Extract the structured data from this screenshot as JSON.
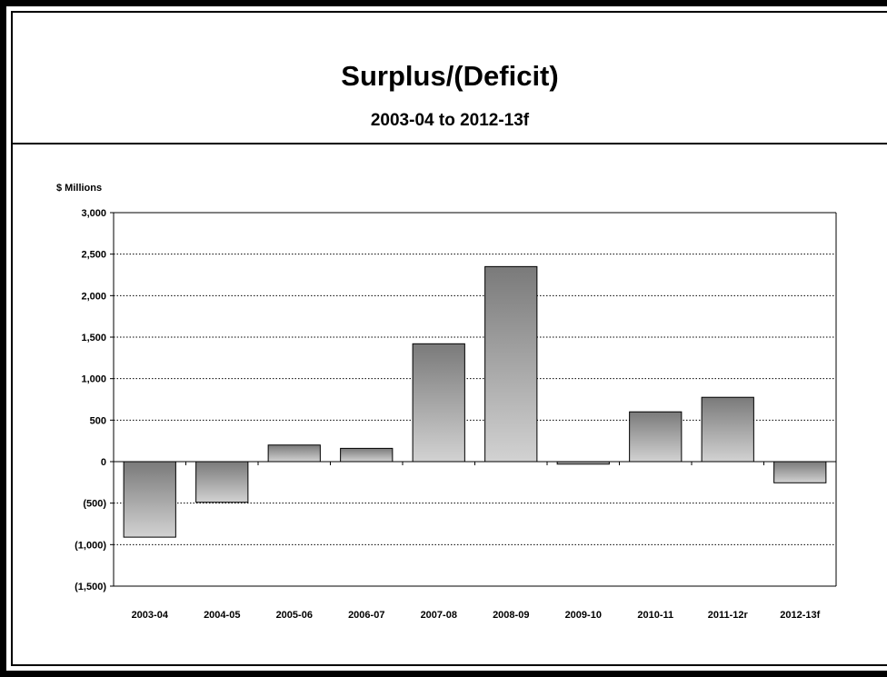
{
  "chart_data": {
    "type": "bar",
    "title": "Surplus/(Deficit)",
    "subtitle": "2003-04 to 2012-13f",
    "ylabel": "$ Millions",
    "xlabel": "",
    "categories": [
      "2003-04",
      "2004-05",
      "2005-06",
      "2006-07",
      "2007-08",
      "2008-09",
      "2009-10",
      "2010-11",
      "2011-12r",
      "2012-13f"
    ],
    "values": [
      -910,
      -490,
      200,
      160,
      1420,
      2350,
      -30,
      600,
      775,
      -255
    ],
    "ylim": [
      -1500,
      3000
    ],
    "yticks": [
      3000,
      2500,
      2000,
      1500,
      1000,
      500,
      0,
      -500,
      -1000,
      -1500
    ],
    "ytick_labels": [
      "3,000",
      "2,500",
      "2,000",
      "1,500",
      "1,000",
      "500",
      "0",
      "(500)",
      "(1,000)",
      "(1,500)"
    ],
    "grid": "dotted horizontal",
    "bar_gradient": {
      "top": "#7a7a7a",
      "bottom": "#d2d2d2"
    }
  }
}
